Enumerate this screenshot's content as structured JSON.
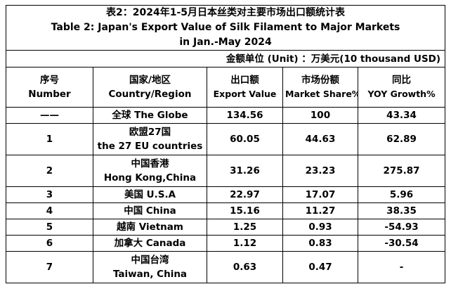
{
  "title": {
    "line1": "表2：2024年1-5月日本丝类对主要市场出口额统计表",
    "line2": "Table 2: Japan's Export Value of Silk Filament to Major Markets",
    "line3": "in Jan.-May 2024"
  },
  "unit": "金额单位 (Unit) ：万美元(10 thousand USD)",
  "headers": {
    "no": [
      "序号",
      "Number"
    ],
    "region": [
      "国家/地区",
      "Country/Region"
    ],
    "export": [
      "出口额",
      "Export Value"
    ],
    "share": [
      "市场份额",
      "Market Share%"
    ],
    "yoy": [
      "同比",
      "YOY Growth%"
    ]
  },
  "rows": [
    {
      "no": "——",
      "region": [
        "全球  The Globe"
      ],
      "export": "134.56",
      "share": "100",
      "yoy": "43.34"
    },
    {
      "no": "1",
      "region": [
        "欧盟27国",
        "the 27 EU countries"
      ],
      "export": "60.05",
      "share": "44.63",
      "yoy": "62.89"
    },
    {
      "no": "2",
      "region": [
        "中国香港",
        "Hong Kong,China"
      ],
      "export": "31.26",
      "share": "23.23",
      "yoy": "275.87"
    },
    {
      "no": "3",
      "region": [
        "美国 U.S.A"
      ],
      "export": "22.97",
      "share": "17.07",
      "yoy": "5.96"
    },
    {
      "no": "4",
      "region": [
        "中国 China"
      ],
      "export": "15.16",
      "share": "11.27",
      "yoy": "38.35"
    },
    {
      "no": "5",
      "region": [
        "越南 Vietnam"
      ],
      "export": "1.25",
      "share": "0.93",
      "yoy": "-54.93"
    },
    {
      "no": "6",
      "region": [
        "加拿大 Canada"
      ],
      "export": "1.12",
      "share": "0.83",
      "yoy": "-30.54"
    },
    {
      "no": "7",
      "region": [
        "中国台湾",
        "Taiwan, China"
      ],
      "export": "0.63",
      "share": "0.47",
      "yoy": "-"
    }
  ]
}
